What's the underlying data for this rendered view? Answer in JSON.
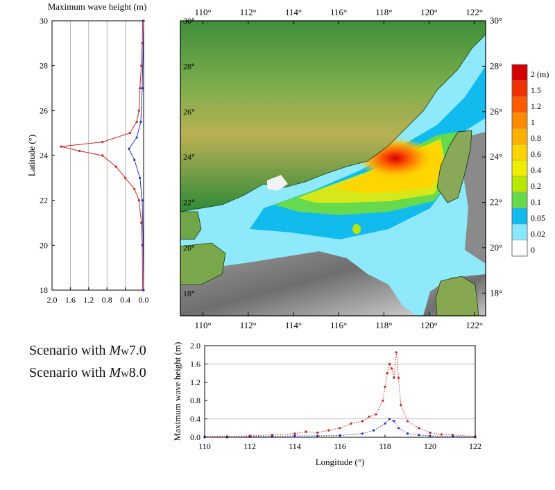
{
  "left_panel": {
    "title": "Maximum wave height (m)",
    "ylabel": "Latitude (°)",
    "y_ticks": [
      "30",
      "28",
      "26",
      "24",
      "22",
      "20",
      "18"
    ],
    "x_ticks": [
      "2.0",
      "1.6",
      "1.2",
      "0.8",
      "0.4",
      "0.0"
    ],
    "xlim": [
      2.0,
      0.0
    ],
    "ylim": [
      18,
      30
    ],
    "series_colors": {
      "mw70": "#2233bb",
      "mw80": "#cc2222"
    }
  },
  "map": {
    "top_lon_ticks": [
      "110°",
      "112°",
      "114°",
      "116°",
      "118°",
      "120°",
      "122°"
    ],
    "bottom_lon_ticks": [
      "110°",
      "112°",
      "114°",
      "116°",
      "118°",
      "120°",
      "122°"
    ],
    "right_lat_ticks": [
      "30°",
      "28°",
      "26°",
      "24°",
      "22°",
      "20°",
      "18°"
    ],
    "inner_lat_ticks": [
      "30°",
      "28°",
      "26°",
      "24°",
      "22°",
      "20°",
      "18°"
    ],
    "lon_range": [
      109,
      122.5
    ],
    "lat_range": [
      17,
      30
    ]
  },
  "legend": {
    "labels": [
      "2 (m)",
      "1.5",
      "1.2",
      "1",
      "0.8",
      "0.6",
      "0.4",
      "0.2",
      "0.1",
      "0.05",
      "0.02",
      "0"
    ],
    "colors": [
      "#d40000",
      "#ee3300",
      "#ff5a00",
      "#ff8c00",
      "#ffb000",
      "#ffd500",
      "#f0ee00",
      "#b8e800",
      "#66d94d",
      "#11bbee",
      "#88e8ff",
      "#ffffff"
    ]
  },
  "scenarios": {
    "line1_prefix": "Scenario with ",
    "line1_m": "M",
    "line1_sub": "w",
    "line1_value": "7.0",
    "line2_prefix": "Scenario with ",
    "line2_m": "M",
    "line2_sub": "w",
    "line2_value": "8.0"
  },
  "chart_data": {
    "type": "scatter",
    "title": "",
    "xlabel": "Longitude (°)",
    "ylabel": "Maximum wave height (m)",
    "xlim": [
      110,
      122
    ],
    "ylim": [
      0,
      2.0
    ],
    "x_ticks": [
      "110",
      "112",
      "114",
      "116",
      "118",
      "120",
      "122"
    ],
    "y_ticks": [
      "0.0",
      "0.4",
      "0.8",
      "1.2",
      "1.6",
      "2.0"
    ],
    "grid_y": [
      0.4,
      1.6
    ],
    "series": [
      {
        "color": "#cc2222",
        "x": [
          110,
          111,
          112,
          113,
          114,
          114.5,
          115,
          115.5,
          116,
          116.5,
          117,
          117.3,
          117.6,
          117.9,
          118.0,
          118.1,
          118.2,
          118.3,
          118.4,
          118.5,
          118.6,
          118.7,
          119,
          119.5,
          120,
          120.5,
          121,
          122
        ],
        "values": [
          0.02,
          0.02,
          0.03,
          0.05,
          0.08,
          0.12,
          0.1,
          0.15,
          0.2,
          0.3,
          0.35,
          0.45,
          0.5,
          0.8,
          1.1,
          1.4,
          1.6,
          1.5,
          1.3,
          1.85,
          1.3,
          0.7,
          0.35,
          0.2,
          0.1,
          0.06,
          0.05,
          0.02
        ]
      },
      {
        "color": "#2233bb",
        "x": [
          110,
          111,
          112,
          113,
          114,
          115,
          116,
          117,
          117.5,
          118,
          118.2,
          118.4,
          118.6,
          119,
          119.5,
          120,
          121,
          122
        ],
        "values": [
          0.0,
          0.0,
          0.01,
          0.02,
          0.03,
          0.03,
          0.04,
          0.08,
          0.15,
          0.3,
          0.4,
          0.35,
          0.2,
          0.08,
          0.05,
          0.03,
          0.02,
          0.0
        ]
      }
    ]
  }
}
